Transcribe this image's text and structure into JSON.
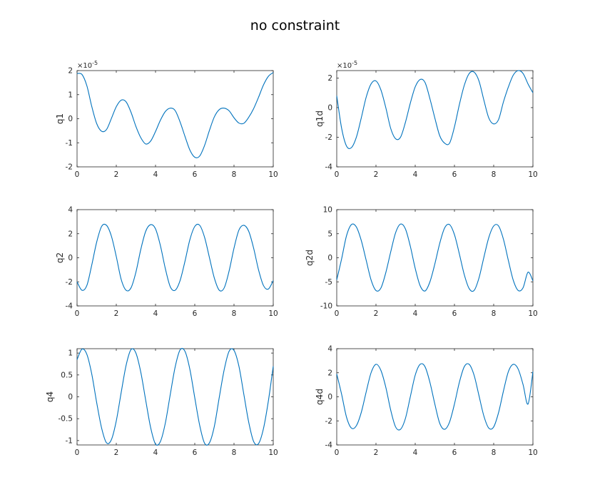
{
  "figure": {
    "title": "no constraint"
  },
  "chart_data": [
    {
      "type": "line",
      "ylabel": "q1",
      "xlim": [
        0,
        10
      ],
      "ylim": [
        -2,
        2
      ],
      "xticks": [
        "0",
        "2",
        "4",
        "6",
        "8",
        "10"
      ],
      "yticks": [
        "-2",
        "-1",
        "0",
        "1",
        "2"
      ],
      "exponent_label": "×10",
      "exponent_power": "-5",
      "series": [
        {
          "color": "#0072bd",
          "x": [
            0,
            0.25,
            0.5,
            0.75,
            1.0,
            1.25,
            1.5,
            1.75,
            2.0,
            2.25,
            2.5,
            2.75,
            3.0,
            3.25,
            3.5,
            3.75,
            4.0,
            4.25,
            4.5,
            4.75,
            5.0,
            5.25,
            5.5,
            5.75,
            6.0,
            6.25,
            6.5,
            6.75,
            7.0,
            7.25,
            7.5,
            7.75,
            8.0,
            8.25,
            8.5,
            8.75,
            9.0,
            9.25,
            9.5,
            9.75,
            10.0
          ],
          "y": [
            1.88,
            1.84,
            1.37,
            0.51,
            -0.2,
            -0.52,
            -0.45,
            0.01,
            0.5,
            0.77,
            0.7,
            0.27,
            -0.32,
            -0.79,
            -1.05,
            -0.93,
            -0.53,
            -0.06,
            0.3,
            0.44,
            0.34,
            -0.13,
            -0.73,
            -1.3,
            -1.6,
            -1.55,
            -1.11,
            -0.48,
            0.08,
            0.38,
            0.44,
            0.33,
            0.04,
            -0.18,
            -0.19,
            0.06,
            0.42,
            0.89,
            1.4,
            1.76,
            1.92
          ]
        }
      ]
    },
    {
      "type": "line",
      "ylabel": "q1d",
      "xlim": [
        0,
        10
      ],
      "ylim": [
        -4,
        2.5
      ],
      "xticks": [
        "0",
        "2",
        "4",
        "6",
        "8",
        "10"
      ],
      "yticks": [
        "-4",
        "-2",
        "0",
        "2"
      ],
      "exponent_label": "×10",
      "exponent_power": "-5",
      "series": [
        {
          "color": "#0072bd",
          "x": [
            0,
            0.25,
            0.5,
            0.75,
            1.0,
            1.25,
            1.5,
            1.75,
            2.0,
            2.25,
            2.5,
            2.75,
            3.0,
            3.25,
            3.5,
            3.75,
            4.0,
            4.25,
            4.5,
            4.75,
            5.0,
            5.25,
            5.5,
            5.75,
            6.0,
            6.25,
            6.5,
            6.75,
            7.0,
            7.25,
            7.5,
            7.75,
            8.0,
            8.25,
            8.5,
            8.75,
            9.0,
            9.25,
            9.5,
            9.75,
            10.0
          ],
          "y": [
            0.8,
            -1.4,
            -2.6,
            -2.7,
            -2.0,
            -0.7,
            0.7,
            1.6,
            1.8,
            1.2,
            0.0,
            -1.4,
            -2.1,
            -2.0,
            -1.0,
            0.3,
            1.4,
            1.9,
            1.7,
            0.6,
            -0.7,
            -1.9,
            -2.4,
            -2.4,
            -1.3,
            0.2,
            1.5,
            2.3,
            2.4,
            1.8,
            0.5,
            -0.7,
            -1.1,
            -0.8,
            0.4,
            1.4,
            2.2,
            2.5,
            2.3,
            1.6,
            1.0
          ]
        }
      ]
    },
    {
      "type": "line",
      "ylabel": "q2",
      "xlim": [
        0,
        10
      ],
      "ylim": [
        -4,
        4
      ],
      "xticks": [
        "0",
        "2",
        "4",
        "6",
        "8",
        "10"
      ],
      "yticks": [
        "-4",
        "-2",
        "0",
        "2",
        "4"
      ],
      "series": [
        {
          "color": "#0072bd",
          "x": [
            0,
            0.25,
            0.5,
            0.75,
            1.0,
            1.25,
            1.5,
            1.75,
            2.0,
            2.25,
            2.5,
            2.75,
            3.0,
            3.25,
            3.5,
            3.75,
            4.0,
            4.25,
            4.5,
            4.75,
            5.0,
            5.25,
            5.5,
            5.75,
            6.0,
            6.25,
            6.5,
            6.75,
            7.0,
            7.25,
            7.5,
            7.75,
            8.0,
            8.25,
            8.5,
            8.75,
            9.0,
            9.25,
            9.5,
            9.75,
            10.0
          ],
          "y": [
            -2.0,
            -2.7,
            -2.3,
            -0.6,
            1.3,
            2.6,
            2.7,
            1.8,
            0.1,
            -1.8,
            -2.7,
            -2.5,
            -1.2,
            0.7,
            2.2,
            2.75,
            2.4,
            1.0,
            -0.9,
            -2.4,
            -2.7,
            -1.9,
            -0.3,
            1.5,
            2.6,
            2.7,
            1.7,
            0.0,
            -1.7,
            -2.7,
            -2.5,
            -1.1,
            0.8,
            2.3,
            2.7,
            2.2,
            0.8,
            -1.0,
            -2.3,
            -2.6,
            -1.9
          ]
        }
      ]
    },
    {
      "type": "line",
      "ylabel": "q2d",
      "xlim": [
        0,
        10
      ],
      "ylim": [
        -10,
        10
      ],
      "xticks": [
        "0",
        "2",
        "4",
        "6",
        "8",
        "10"
      ],
      "yticks": [
        "-10",
        "-5",
        "0",
        "5",
        "10"
      ],
      "series": [
        {
          "color": "#0072bd",
          "x": [
            0,
            0.25,
            0.5,
            0.75,
            1.0,
            1.25,
            1.5,
            1.75,
            2.0,
            2.25,
            2.5,
            2.75,
            3.0,
            3.25,
            3.5,
            3.75,
            4.0,
            4.25,
            4.5,
            4.75,
            5.0,
            5.25,
            5.5,
            5.75,
            6.0,
            6.25,
            6.5,
            6.75,
            7.0,
            7.25,
            7.5,
            7.75,
            8.0,
            8.25,
            8.5,
            8.75,
            9.0,
            9.25,
            9.5,
            9.75,
            10.0
          ],
          "y": [
            -4.6,
            -0.2,
            4.6,
            6.9,
            6.4,
            3.6,
            -0.5,
            -4.6,
            -6.8,
            -6.3,
            -3.1,
            1.2,
            5.2,
            7.0,
            6.0,
            2.4,
            -2.2,
            -5.8,
            -6.9,
            -5.0,
            -1.3,
            3.0,
            6.2,
            6.9,
            4.8,
            0.8,
            -3.5,
            -6.4,
            -6.8,
            -4.2,
            0.1,
            4.2,
            6.6,
            6.6,
            3.8,
            -0.6,
            -4.7,
            -6.8,
            -6.2,
            -3.0,
            -4.8
          ]
        }
      ]
    },
    {
      "type": "line",
      "ylabel": "q4",
      "xlim": [
        0,
        10
      ],
      "ylim": [
        -1.1,
        1.1
      ],
      "xticks": [
        "0",
        "2",
        "4",
        "6",
        "8",
        "10"
      ],
      "yticks": [
        "-1",
        "-0.5",
        "0",
        "0.5",
        "1"
      ],
      "series": [
        {
          "color": "#0072bd",
          "x": [
            0,
            0.25,
            0.5,
            0.75,
            1.0,
            1.25,
            1.5,
            1.75,
            2.0,
            2.25,
            2.5,
            2.75,
            3.0,
            3.25,
            3.5,
            3.75,
            4.0,
            4.25,
            4.5,
            4.75,
            5.0,
            5.25,
            5.5,
            5.75,
            6.0,
            6.25,
            6.5,
            6.75,
            7.0,
            7.25,
            7.5,
            7.75,
            8.0,
            8.25,
            8.5,
            8.75,
            9.0,
            9.25,
            9.5,
            9.75,
            10.0
          ],
          "y": [
            0.85,
            1.09,
            0.97,
            0.52,
            -0.13,
            -0.71,
            -1.05,
            -0.98,
            -0.55,
            0.1,
            0.72,
            1.08,
            1.0,
            0.56,
            -0.08,
            -0.7,
            -1.08,
            -1.02,
            -0.6,
            0.05,
            0.68,
            1.07,
            1.04,
            0.63,
            -0.02,
            -0.65,
            -1.06,
            -1.05,
            -0.67,
            -0.01,
            0.62,
            1.04,
            1.06,
            0.7,
            0.06,
            -0.58,
            -1.02,
            -1.07,
            -0.73,
            -0.1,
            0.7
          ]
        }
      ]
    },
    {
      "type": "line",
      "ylabel": "q4d",
      "xlim": [
        0,
        10
      ],
      "ylim": [
        -4,
        4
      ],
      "xticks": [
        "0",
        "2",
        "4",
        "6",
        "8",
        "10"
      ],
      "yticks": [
        "-4",
        "-2",
        "0",
        "2",
        "4"
      ],
      "series": [
        {
          "color": "#0072bd",
          "x": [
            0,
            0.25,
            0.5,
            0.75,
            1.0,
            1.25,
            1.5,
            1.75,
            2.0,
            2.25,
            2.5,
            2.75,
            3.0,
            3.25,
            3.5,
            3.75,
            4.0,
            4.25,
            4.5,
            4.75,
            5.0,
            5.25,
            5.5,
            5.75,
            6.0,
            6.25,
            6.5,
            6.75,
            7.0,
            7.25,
            7.5,
            7.75,
            8.0,
            8.25,
            8.5,
            8.75,
            9.0,
            9.25,
            9.5,
            9.75,
            10.0
          ],
          "y": [
            1.9,
            0.2,
            -1.7,
            -2.6,
            -2.4,
            -1.3,
            0.4,
            2.0,
            2.7,
            2.2,
            0.8,
            -1.1,
            -2.5,
            -2.7,
            -1.8,
            0.0,
            1.8,
            2.7,
            2.5,
            1.2,
            -0.6,
            -2.2,
            -2.7,
            -2.1,
            -0.6,
            1.2,
            2.5,
            2.7,
            1.8,
            0.1,
            -1.6,
            -2.6,
            -2.5,
            -1.3,
            0.5,
            2.1,
            2.7,
            2.3,
            1.0,
            -0.6,
            2.1
          ]
        }
      ]
    }
  ]
}
